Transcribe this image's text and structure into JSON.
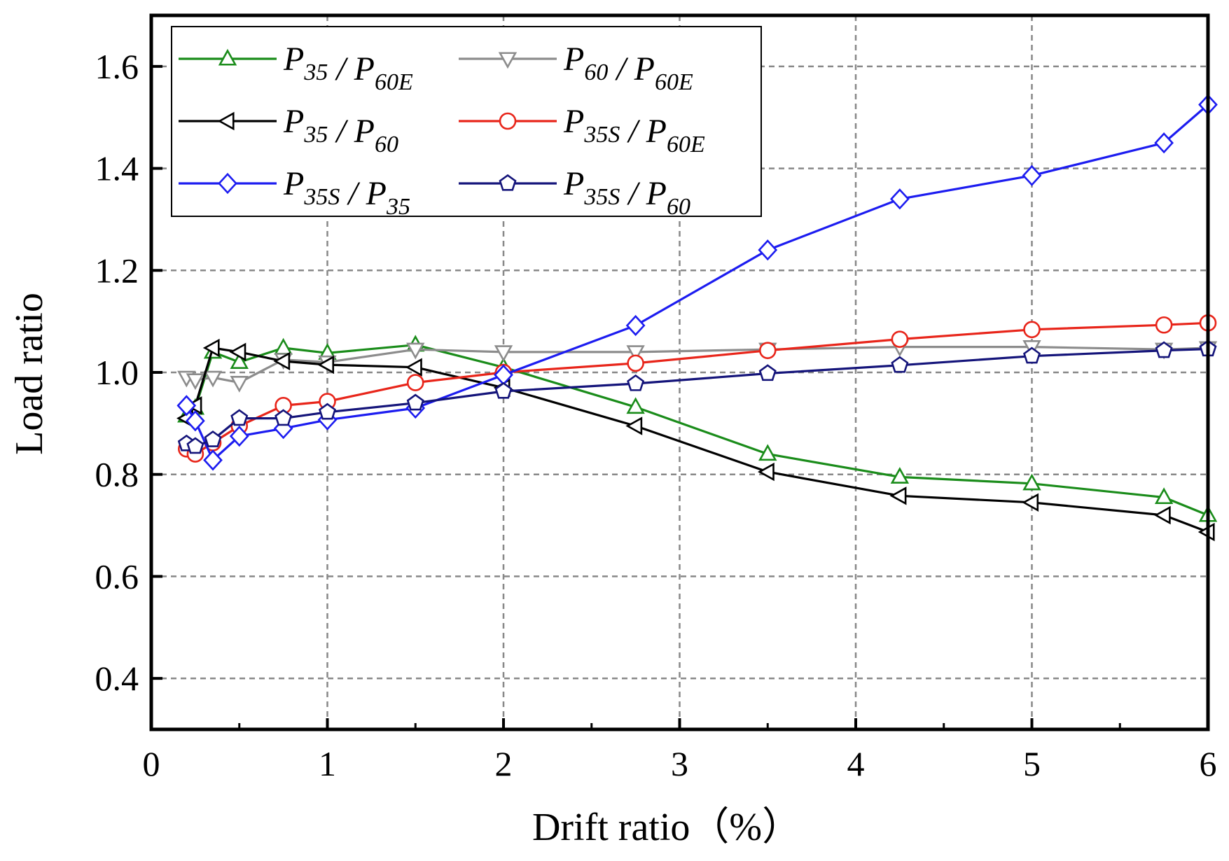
{
  "chart_data": {
    "type": "line",
    "title": "",
    "xlabel": "Drift ratio（%）",
    "ylabel": "Load ratio",
    "xlim": [
      0,
      6
    ],
    "ylim": [
      0.3,
      1.7
    ],
    "xticks": [
      "0",
      "1",
      "2",
      "3",
      "4",
      "5",
      "6"
    ],
    "yticks": [
      "0.4",
      "0.6",
      "0.8",
      "1.0",
      "1.2",
      "1.4",
      "1.6"
    ],
    "grid": true,
    "legend_position": "top-left",
    "series": [
      {
        "id": "p35-p60e",
        "name": "P35 / P60E",
        "legend": {
          "main": "P",
          "num_sub": "35",
          "den_main": "P",
          "den_sub": "60E"
        },
        "color": "#1a8c1a",
        "marker": "triangle-up",
        "x": [
          0.2,
          0.25,
          0.35,
          0.5,
          0.75,
          1.0,
          1.5,
          2.0,
          2.75,
          3.5,
          4.25,
          5.0,
          5.75,
          6.0
        ],
        "y": [
          0.915,
          0.93,
          1.04,
          1.02,
          1.048,
          1.038,
          1.054,
          1.01,
          0.932,
          0.84,
          0.795,
          0.782,
          0.755,
          0.72
        ]
      },
      {
        "id": "p60-p60e",
        "name": "P60 / P60E",
        "legend": {
          "main": "P",
          "num_sub": "60",
          "den_main": "P",
          "den_sub": "60E"
        },
        "color": "#8c8c8c",
        "marker": "triangle-down",
        "x": [
          0.2,
          0.25,
          0.35,
          0.5,
          0.75,
          1.0,
          1.5,
          2.0,
          2.75,
          3.5,
          4.25,
          5.0,
          5.75,
          6.0
        ],
        "y": [
          0.99,
          0.985,
          0.99,
          0.98,
          1.025,
          1.02,
          1.045,
          1.04,
          1.04,
          1.045,
          1.05,
          1.05,
          1.045,
          1.048
        ]
      },
      {
        "id": "p35-p60",
        "name": "P35 / P60",
        "legend": {
          "main": "P",
          "num_sub": "35",
          "den_main": "P",
          "den_sub": "60"
        },
        "color": "#000000",
        "marker": "triangle-left",
        "x": [
          0.2,
          0.25,
          0.35,
          0.5,
          0.75,
          1.0,
          1.5,
          2.0,
          2.75,
          3.5,
          4.25,
          5.0,
          5.75,
          6.0
        ],
        "y": [
          0.91,
          0.935,
          1.048,
          1.04,
          1.022,
          1.015,
          1.01,
          0.97,
          0.895,
          0.805,
          0.758,
          0.745,
          0.72,
          0.687
        ]
      },
      {
        "id": "p35s-p60e",
        "name": "P35S / P60E",
        "legend": {
          "main": "P",
          "num_sub": "35S",
          "den_main": "P",
          "den_sub": "60E"
        },
        "color": "#e8251a",
        "marker": "circle",
        "x": [
          0.2,
          0.25,
          0.35,
          0.5,
          0.75,
          1.0,
          1.5,
          2.0,
          2.75,
          3.5,
          4.25,
          5.0,
          5.75,
          6.0
        ],
        "y": [
          0.85,
          0.84,
          0.862,
          0.895,
          0.935,
          0.943,
          0.98,
          1.0,
          1.018,
          1.043,
          1.065,
          1.084,
          1.093,
          1.097
        ]
      },
      {
        "id": "p35s-p35",
        "name": "P35S / P35",
        "legend": {
          "main": "P",
          "num_sub": "35S",
          "den_main": "P",
          "den_sub": "35"
        },
        "color": "#1c1cf0",
        "marker": "diamond",
        "x": [
          0.2,
          0.25,
          0.35,
          0.5,
          0.75,
          1.0,
          1.5,
          2.0,
          2.75,
          3.5,
          4.25,
          5.0,
          5.75,
          6.0
        ],
        "y": [
          0.935,
          0.905,
          0.828,
          0.875,
          0.89,
          0.907,
          0.93,
          0.995,
          1.092,
          1.24,
          1.34,
          1.386,
          1.45,
          1.525
        ]
      },
      {
        "id": "p35s-p60",
        "name": "P35S / P60",
        "legend": {
          "main": "P",
          "num_sub": "35S",
          "den_main": "P",
          "den_sub": "60"
        },
        "color": "#14147a",
        "marker": "pentagon",
        "x": [
          0.2,
          0.25,
          0.35,
          0.5,
          0.75,
          1.0,
          1.5,
          2.0,
          2.75,
          3.5,
          4.25,
          5.0,
          5.75,
          6.0
        ],
        "y": [
          0.86,
          0.855,
          0.868,
          0.91,
          0.91,
          0.922,
          0.94,
          0.963,
          0.978,
          0.998,
          1.014,
          1.032,
          1.043,
          1.046
        ]
      }
    ]
  }
}
